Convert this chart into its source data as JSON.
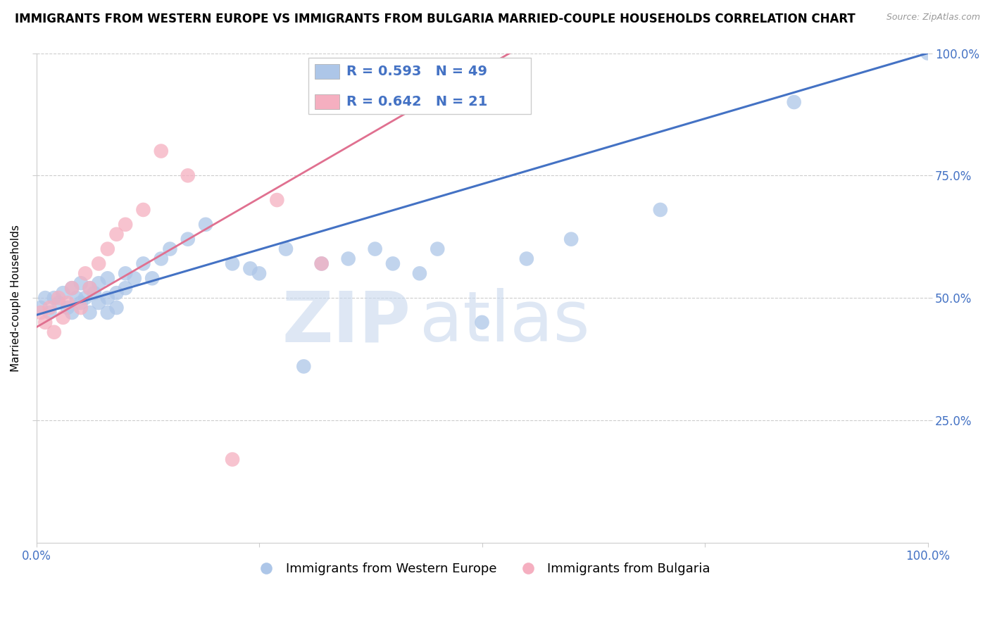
{
  "title": "IMMIGRANTS FROM WESTERN EUROPE VS IMMIGRANTS FROM BULGARIA MARRIED-COUPLE HOUSEHOLDS CORRELATION CHART",
  "source": "Source: ZipAtlas.com",
  "ylabel": "Married-couple Households",
  "legend_label_blue": "Immigrants from Western Europe",
  "legend_label_pink": "Immigrants from Bulgaria",
  "R_blue": 0.593,
  "N_blue": 49,
  "R_pink": 0.642,
  "N_pink": 21,
  "blue_color": "#adc6e8",
  "pink_color": "#f5afc0",
  "blue_line_color": "#4472c4",
  "pink_line_color": "#e07090",
  "background_color": "#ffffff",
  "grid_color": "#cccccc",
  "xlim": [
    0,
    1
  ],
  "ylim": [
    0,
    1
  ],
  "ytick_positions": [
    0.25,
    0.5,
    0.75,
    1.0
  ],
  "ytick_labels": [
    "25.0%",
    "50.0%",
    "75.0%",
    "100.0%"
  ],
  "watermark_zip": "ZIP",
  "watermark_atlas": "atlas",
  "title_fontsize": 12,
  "axis_label_fontsize": 11,
  "tick_fontsize": 12,
  "blue_scatter_x": [
    0.005,
    0.01,
    0.015,
    0.02,
    0.025,
    0.03,
    0.035,
    0.04,
    0.04,
    0.045,
    0.05,
    0.05,
    0.055,
    0.06,
    0.06,
    0.065,
    0.07,
    0.07,
    0.08,
    0.08,
    0.08,
    0.09,
    0.09,
    0.1,
    0.1,
    0.11,
    0.12,
    0.13,
    0.14,
    0.15,
    0.17,
    0.19,
    0.22,
    0.24,
    0.25,
    0.28,
    0.3,
    0.32,
    0.35,
    0.38,
    0.4,
    0.43,
    0.45,
    0.5,
    0.55,
    0.6,
    0.7,
    0.85,
    1.0
  ],
  "blue_scatter_y": [
    0.48,
    0.5,
    0.47,
    0.5,
    0.49,
    0.51,
    0.48,
    0.52,
    0.47,
    0.5,
    0.49,
    0.53,
    0.5,
    0.47,
    0.52,
    0.51,
    0.49,
    0.53,
    0.47,
    0.5,
    0.54,
    0.51,
    0.48,
    0.52,
    0.55,
    0.54,
    0.57,
    0.54,
    0.58,
    0.6,
    0.62,
    0.65,
    0.57,
    0.56,
    0.55,
    0.6,
    0.36,
    0.57,
    0.58,
    0.6,
    0.57,
    0.55,
    0.6,
    0.45,
    0.58,
    0.62,
    0.68,
    0.9,
    1.0
  ],
  "pink_scatter_x": [
    0.005,
    0.01,
    0.015,
    0.02,
    0.025,
    0.03,
    0.035,
    0.04,
    0.05,
    0.055,
    0.06,
    0.07,
    0.08,
    0.09,
    0.1,
    0.12,
    0.14,
    0.17,
    0.22,
    0.27,
    0.32
  ],
  "pink_scatter_y": [
    0.47,
    0.45,
    0.48,
    0.43,
    0.5,
    0.46,
    0.49,
    0.52,
    0.48,
    0.55,
    0.52,
    0.57,
    0.6,
    0.63,
    0.65,
    0.68,
    0.8,
    0.75,
    0.17,
    0.7,
    0.57
  ],
  "blue_line_x0": 0.0,
  "blue_line_y0": 0.465,
  "blue_line_x1": 1.0,
  "blue_line_y1": 1.0,
  "pink_line_x0": 0.0,
  "pink_line_y0": 0.44,
  "pink_line_x1": 0.55,
  "pink_line_y1": 1.02
}
